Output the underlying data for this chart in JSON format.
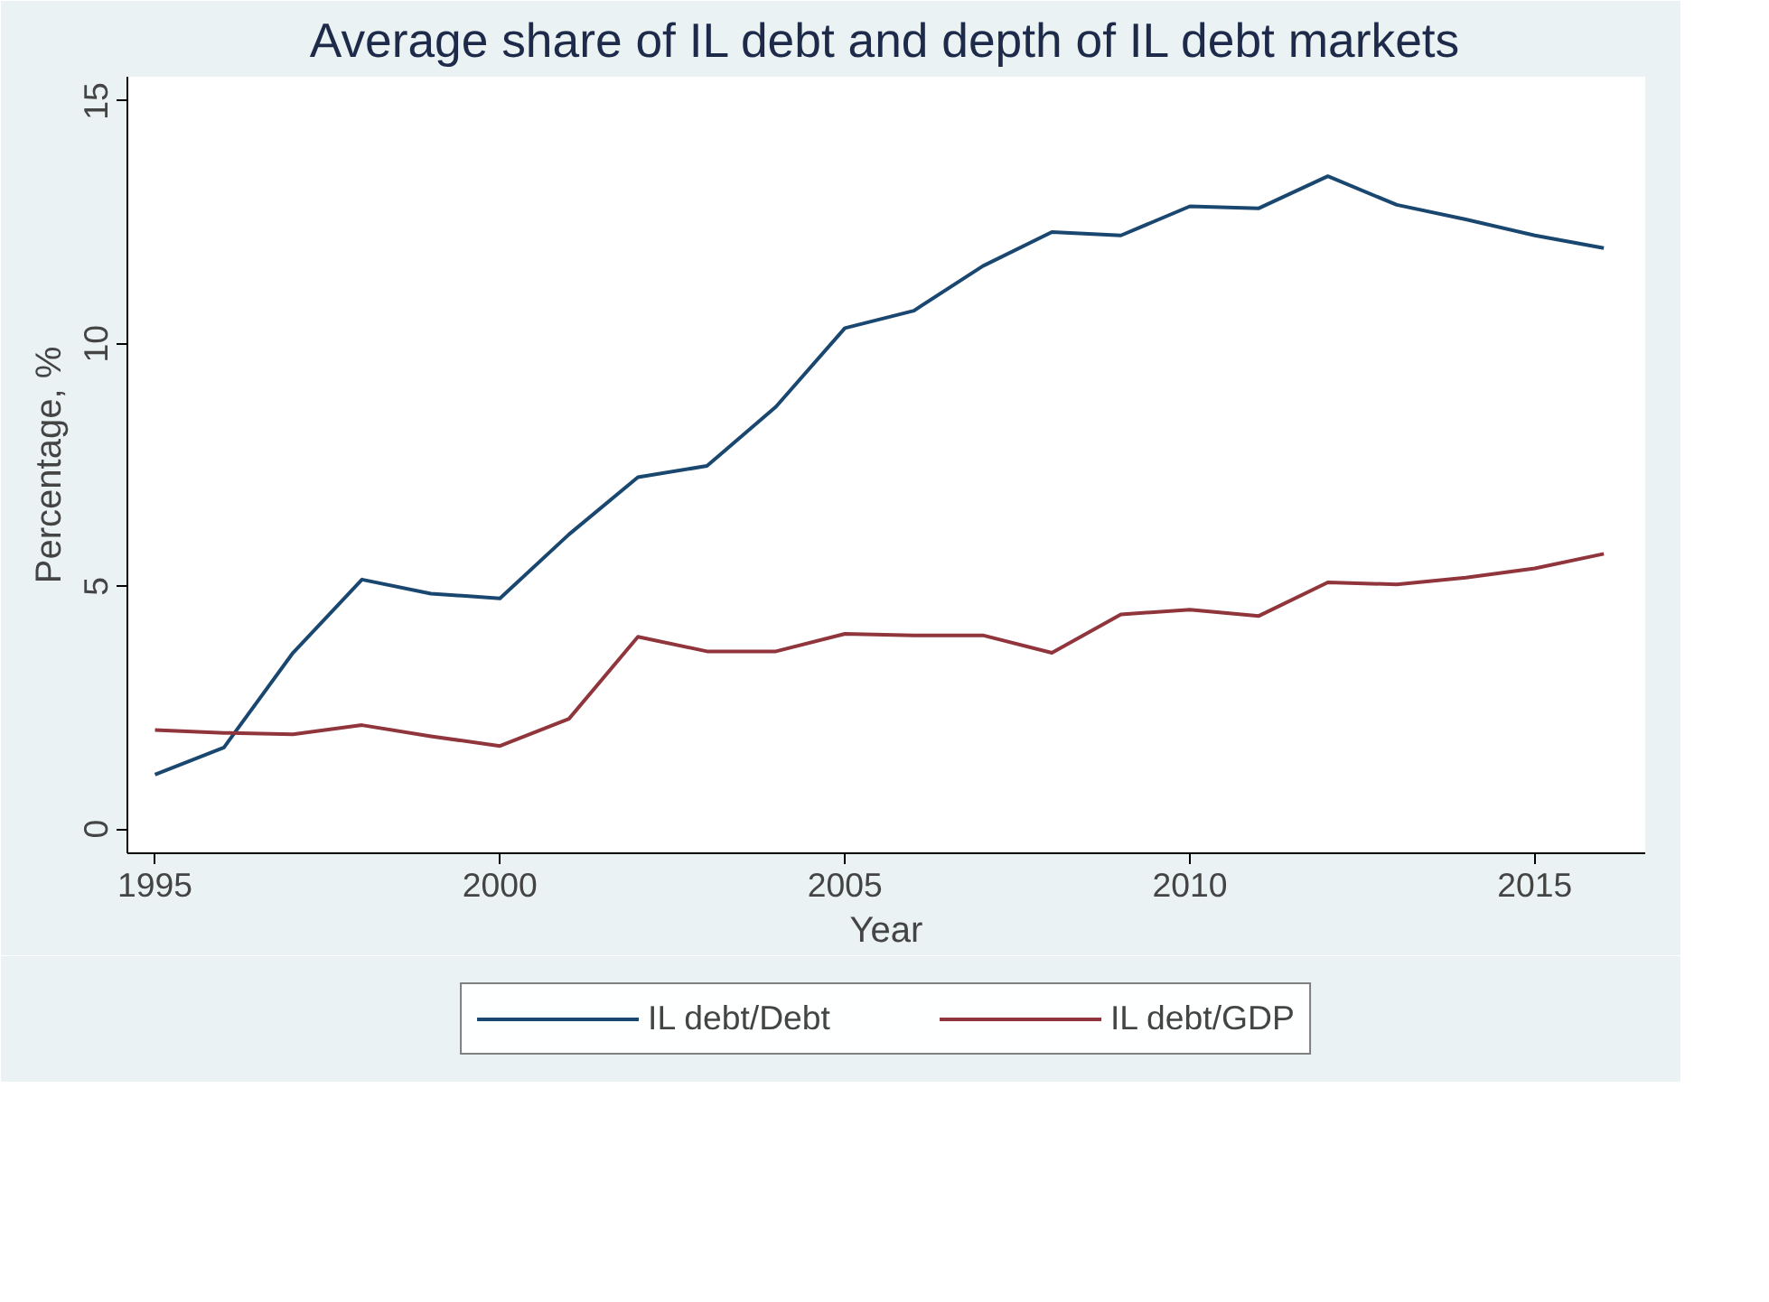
{
  "chart_data": {
    "type": "line",
    "title": "Average share of IL debt and depth of IL debt markets",
    "xlabel": "Year",
    "ylabel": "Percentage, %",
    "x": [
      1995,
      1996,
      1997,
      1998,
      1999,
      2000,
      2001,
      2002,
      2003,
      2004,
      2005,
      2006,
      2007,
      2008,
      2009,
      2010,
      2011,
      2012,
      2013,
      2014,
      2015,
      2016
    ],
    "series": [
      {
        "name": "IL debt/Debt",
        "color": "#1a476f",
        "values": [
          1.12,
          1.68,
          3.63,
          5.14,
          4.85,
          4.75,
          6.07,
          7.25,
          7.48,
          8.7,
          10.32,
          10.68,
          11.6,
          12.3,
          12.23,
          12.83,
          12.79,
          13.45,
          12.86,
          12.56,
          12.23,
          11.97
        ]
      },
      {
        "name": "IL debt/GDP",
        "color": "#90353b",
        "values": [
          2.04,
          1.98,
          1.95,
          2.14,
          1.91,
          1.71,
          2.27,
          3.96,
          3.66,
          3.66,
          4.02,
          3.99,
          3.99,
          3.63,
          4.42,
          4.52,
          4.39,
          5.08,
          5.04,
          5.18,
          5.37,
          5.67
        ]
      }
    ],
    "xlim": [
      1994.6,
      2016.6
    ],
    "ylim": [
      -0.5,
      15.5
    ],
    "xticks": [
      1995,
      2000,
      2005,
      2010,
      2015
    ],
    "yticks": [
      0,
      5,
      10,
      15
    ],
    "grid": false,
    "legend": "bottom",
    "marker": "none",
    "line_style": "solid"
  }
}
